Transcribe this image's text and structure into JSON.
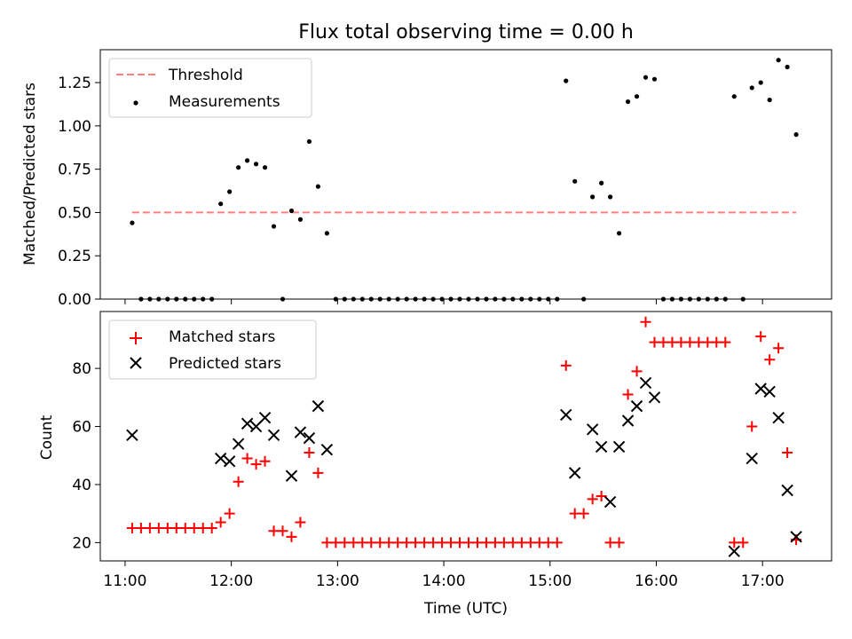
{
  "figure": {
    "title": "Flux total observing time = 0.00 h",
    "xlabel": "Time (UTC)"
  },
  "colors": {
    "threshold": "#ff7f7f",
    "measurements": "#000000",
    "matched": "#ff0000",
    "predicted": "#000000"
  },
  "chart_data": [
    {
      "type": "scatter",
      "ylabel": "Matched/Predicted stars",
      "xlim": [
        "10:46",
        "17:39"
      ],
      "ylim": [
        0,
        1.44
      ],
      "yticks": [
        "0.00",
        "0.25",
        "0.50",
        "0.75",
        "1.00",
        "1.25"
      ],
      "legend_position": "top-left",
      "grid": false,
      "threshold": {
        "name": "Threshold",
        "value": 0.5,
        "x_range": [
          "11:04",
          "17:19"
        ]
      },
      "series": [
        {
          "name": "Measurements",
          "marker": "dot",
          "points": [
            [
              "11:04",
              0.44
            ],
            [
              "11:09",
              0
            ],
            [
              "11:14",
              0
            ],
            [
              "11:19",
              0
            ],
            [
              "11:24",
              0
            ],
            [
              "11:29",
              0
            ],
            [
              "11:34",
              0
            ],
            [
              "11:39",
              0
            ],
            [
              "11:44",
              0
            ],
            [
              "11:49",
              0
            ],
            [
              "11:54",
              0.55
            ],
            [
              "11:59",
              0.62
            ],
            [
              "12:04",
              0.76
            ],
            [
              "12:09",
              0.8
            ],
            [
              "12:14",
              0.78
            ],
            [
              "12:19",
              0.76
            ],
            [
              "12:24",
              0.42
            ],
            [
              "12:29",
              0
            ],
            [
              "12:34",
              0.51
            ],
            [
              "12:39",
              0.46
            ],
            [
              "12:44",
              0.91
            ],
            [
              "12:49",
              0.65
            ],
            [
              "12:54",
              0.38
            ],
            [
              "12:59",
              0
            ],
            [
              "13:04",
              0
            ],
            [
              "13:09",
              0
            ],
            [
              "13:14",
              0
            ],
            [
              "13:19",
              0
            ],
            [
              "13:24",
              0
            ],
            [
              "13:29",
              0
            ],
            [
              "13:34",
              0
            ],
            [
              "13:39",
              0
            ],
            [
              "13:44",
              0
            ],
            [
              "13:49",
              0
            ],
            [
              "13:54",
              0
            ],
            [
              "13:59",
              0
            ],
            [
              "14:04",
              0
            ],
            [
              "14:09",
              0
            ],
            [
              "14:14",
              0
            ],
            [
              "14:19",
              0
            ],
            [
              "14:24",
              0
            ],
            [
              "14:29",
              0
            ],
            [
              "14:34",
              0
            ],
            [
              "14:39",
              0
            ],
            [
              "14:44",
              0
            ],
            [
              "14:49",
              0
            ],
            [
              "14:54",
              0
            ],
            [
              "14:59",
              0
            ],
            [
              "15:04",
              0
            ],
            [
              "15:09",
              1.26
            ],
            [
              "15:14",
              0.68
            ],
            [
              "15:19",
              0
            ],
            [
              "15:24",
              0.59
            ],
            [
              "15:29",
              0.67
            ],
            [
              "15:34",
              0.59
            ],
            [
              "15:39",
              0.38
            ],
            [
              "15:44",
              1.14
            ],
            [
              "15:49",
              1.17
            ],
            [
              "15:54",
              1.28
            ],
            [
              "15:59",
              1.27
            ],
            [
              "16:04",
              0
            ],
            [
              "16:09",
              0
            ],
            [
              "16:14",
              0
            ],
            [
              "16:19",
              0
            ],
            [
              "16:24",
              0
            ],
            [
              "16:29",
              0
            ],
            [
              "16:34",
              0
            ],
            [
              "16:39",
              0
            ],
            [
              "16:44",
              1.17
            ],
            [
              "16:49",
              0
            ],
            [
              "16:54",
              1.22
            ],
            [
              "16:59",
              1.25
            ],
            [
              "17:04",
              1.15
            ],
            [
              "17:09",
              1.38
            ],
            [
              "17:14",
              1.34
            ],
            [
              "17:19",
              0.95
            ]
          ]
        }
      ]
    },
    {
      "type": "scatter",
      "ylabel": "Count",
      "xlim": [
        "10:46",
        "17:39"
      ],
      "ylim": [
        13.7,
        99.6
      ],
      "yticks": [
        "20",
        "40",
        "60",
        "80"
      ],
      "xticks": [
        "11:00",
        "12:00",
        "13:00",
        "14:00",
        "15:00",
        "16:00",
        "17:00"
      ],
      "legend_position": "top-left",
      "grid": false,
      "series": [
        {
          "name": "Matched stars",
          "marker": "plus",
          "points": [
            [
              "11:04",
              25
            ],
            [
              "11:09",
              25
            ],
            [
              "11:14",
              25
            ],
            [
              "11:19",
              25
            ],
            [
              "11:24",
              25
            ],
            [
              "11:29",
              25
            ],
            [
              "11:34",
              25
            ],
            [
              "11:39",
              25
            ],
            [
              "11:44",
              25
            ],
            [
              "11:49",
              25
            ],
            [
              "11:54",
              27
            ],
            [
              "11:59",
              30
            ],
            [
              "12:04",
              41
            ],
            [
              "12:09",
              49
            ],
            [
              "12:14",
              47
            ],
            [
              "12:19",
              48
            ],
            [
              "12:24",
              24
            ],
            [
              "12:29",
              24
            ],
            [
              "12:34",
              22
            ],
            [
              "12:39",
              27
            ],
            [
              "12:44",
              51
            ],
            [
              "12:49",
              44
            ],
            [
              "12:54",
              20
            ],
            [
              "12:59",
              20
            ],
            [
              "13:04",
              20
            ],
            [
              "13:09",
              20
            ],
            [
              "13:14",
              20
            ],
            [
              "13:19",
              20
            ],
            [
              "13:24",
              20
            ],
            [
              "13:29",
              20
            ],
            [
              "13:34",
              20
            ],
            [
              "13:39",
              20
            ],
            [
              "13:44",
              20
            ],
            [
              "13:49",
              20
            ],
            [
              "13:54",
              20
            ],
            [
              "13:59",
              20
            ],
            [
              "14:04",
              20
            ],
            [
              "14:09",
              20
            ],
            [
              "14:14",
              20
            ],
            [
              "14:19",
              20
            ],
            [
              "14:24",
              20
            ],
            [
              "14:29",
              20
            ],
            [
              "14:34",
              20
            ],
            [
              "14:39",
              20
            ],
            [
              "14:44",
              20
            ],
            [
              "14:49",
              20
            ],
            [
              "14:54",
              20
            ],
            [
              "14:59",
              20
            ],
            [
              "15:04",
              20
            ],
            [
              "15:09",
              81
            ],
            [
              "15:14",
              30
            ],
            [
              "15:19",
              30
            ],
            [
              "15:24",
              35
            ],
            [
              "15:29",
              36
            ],
            [
              "15:34",
              20
            ],
            [
              "15:39",
              20
            ],
            [
              "15:44",
              71
            ],
            [
              "15:49",
              79
            ],
            [
              "15:54",
              96
            ],
            [
              "15:59",
              89
            ],
            [
              "16:04",
              89
            ],
            [
              "16:09",
              89
            ],
            [
              "16:14",
              89
            ],
            [
              "16:19",
              89
            ],
            [
              "16:24",
              89
            ],
            [
              "16:29",
              89
            ],
            [
              "16:34",
              89
            ],
            [
              "16:39",
              89
            ],
            [
              "16:44",
              20
            ],
            [
              "16:49",
              20
            ],
            [
              "16:54",
              60
            ],
            [
              "16:59",
              91
            ],
            [
              "17:04",
              83
            ],
            [
              "17:09",
              87
            ],
            [
              "17:14",
              51
            ],
            [
              "17:19",
              21
            ]
          ]
        },
        {
          "name": "Predicted stars",
          "marker": "x",
          "points": [
            [
              "11:04",
              57
            ],
            [
              "11:54",
              49
            ],
            [
              "11:59",
              48
            ],
            [
              "12:04",
              54
            ],
            [
              "12:09",
              61
            ],
            [
              "12:14",
              60
            ],
            [
              "12:19",
              63
            ],
            [
              "12:24",
              57
            ],
            [
              "12:34",
              43
            ],
            [
              "12:39",
              58
            ],
            [
              "12:44",
              56
            ],
            [
              "12:49",
              67
            ],
            [
              "12:54",
              52
            ],
            [
              "15:09",
              64
            ],
            [
              "15:14",
              44
            ],
            [
              "15:24",
              59
            ],
            [
              "15:29",
              53
            ],
            [
              "15:34",
              34
            ],
            [
              "15:39",
              53
            ],
            [
              "15:44",
              62
            ],
            [
              "15:49",
              67
            ],
            [
              "15:54",
              75
            ],
            [
              "15:59",
              70
            ],
            [
              "16:44",
              17
            ],
            [
              "16:54",
              49
            ],
            [
              "16:59",
              73
            ],
            [
              "17:04",
              72
            ],
            [
              "17:09",
              63
            ],
            [
              "17:14",
              38
            ],
            [
              "17:19",
              22
            ]
          ]
        }
      ]
    }
  ]
}
